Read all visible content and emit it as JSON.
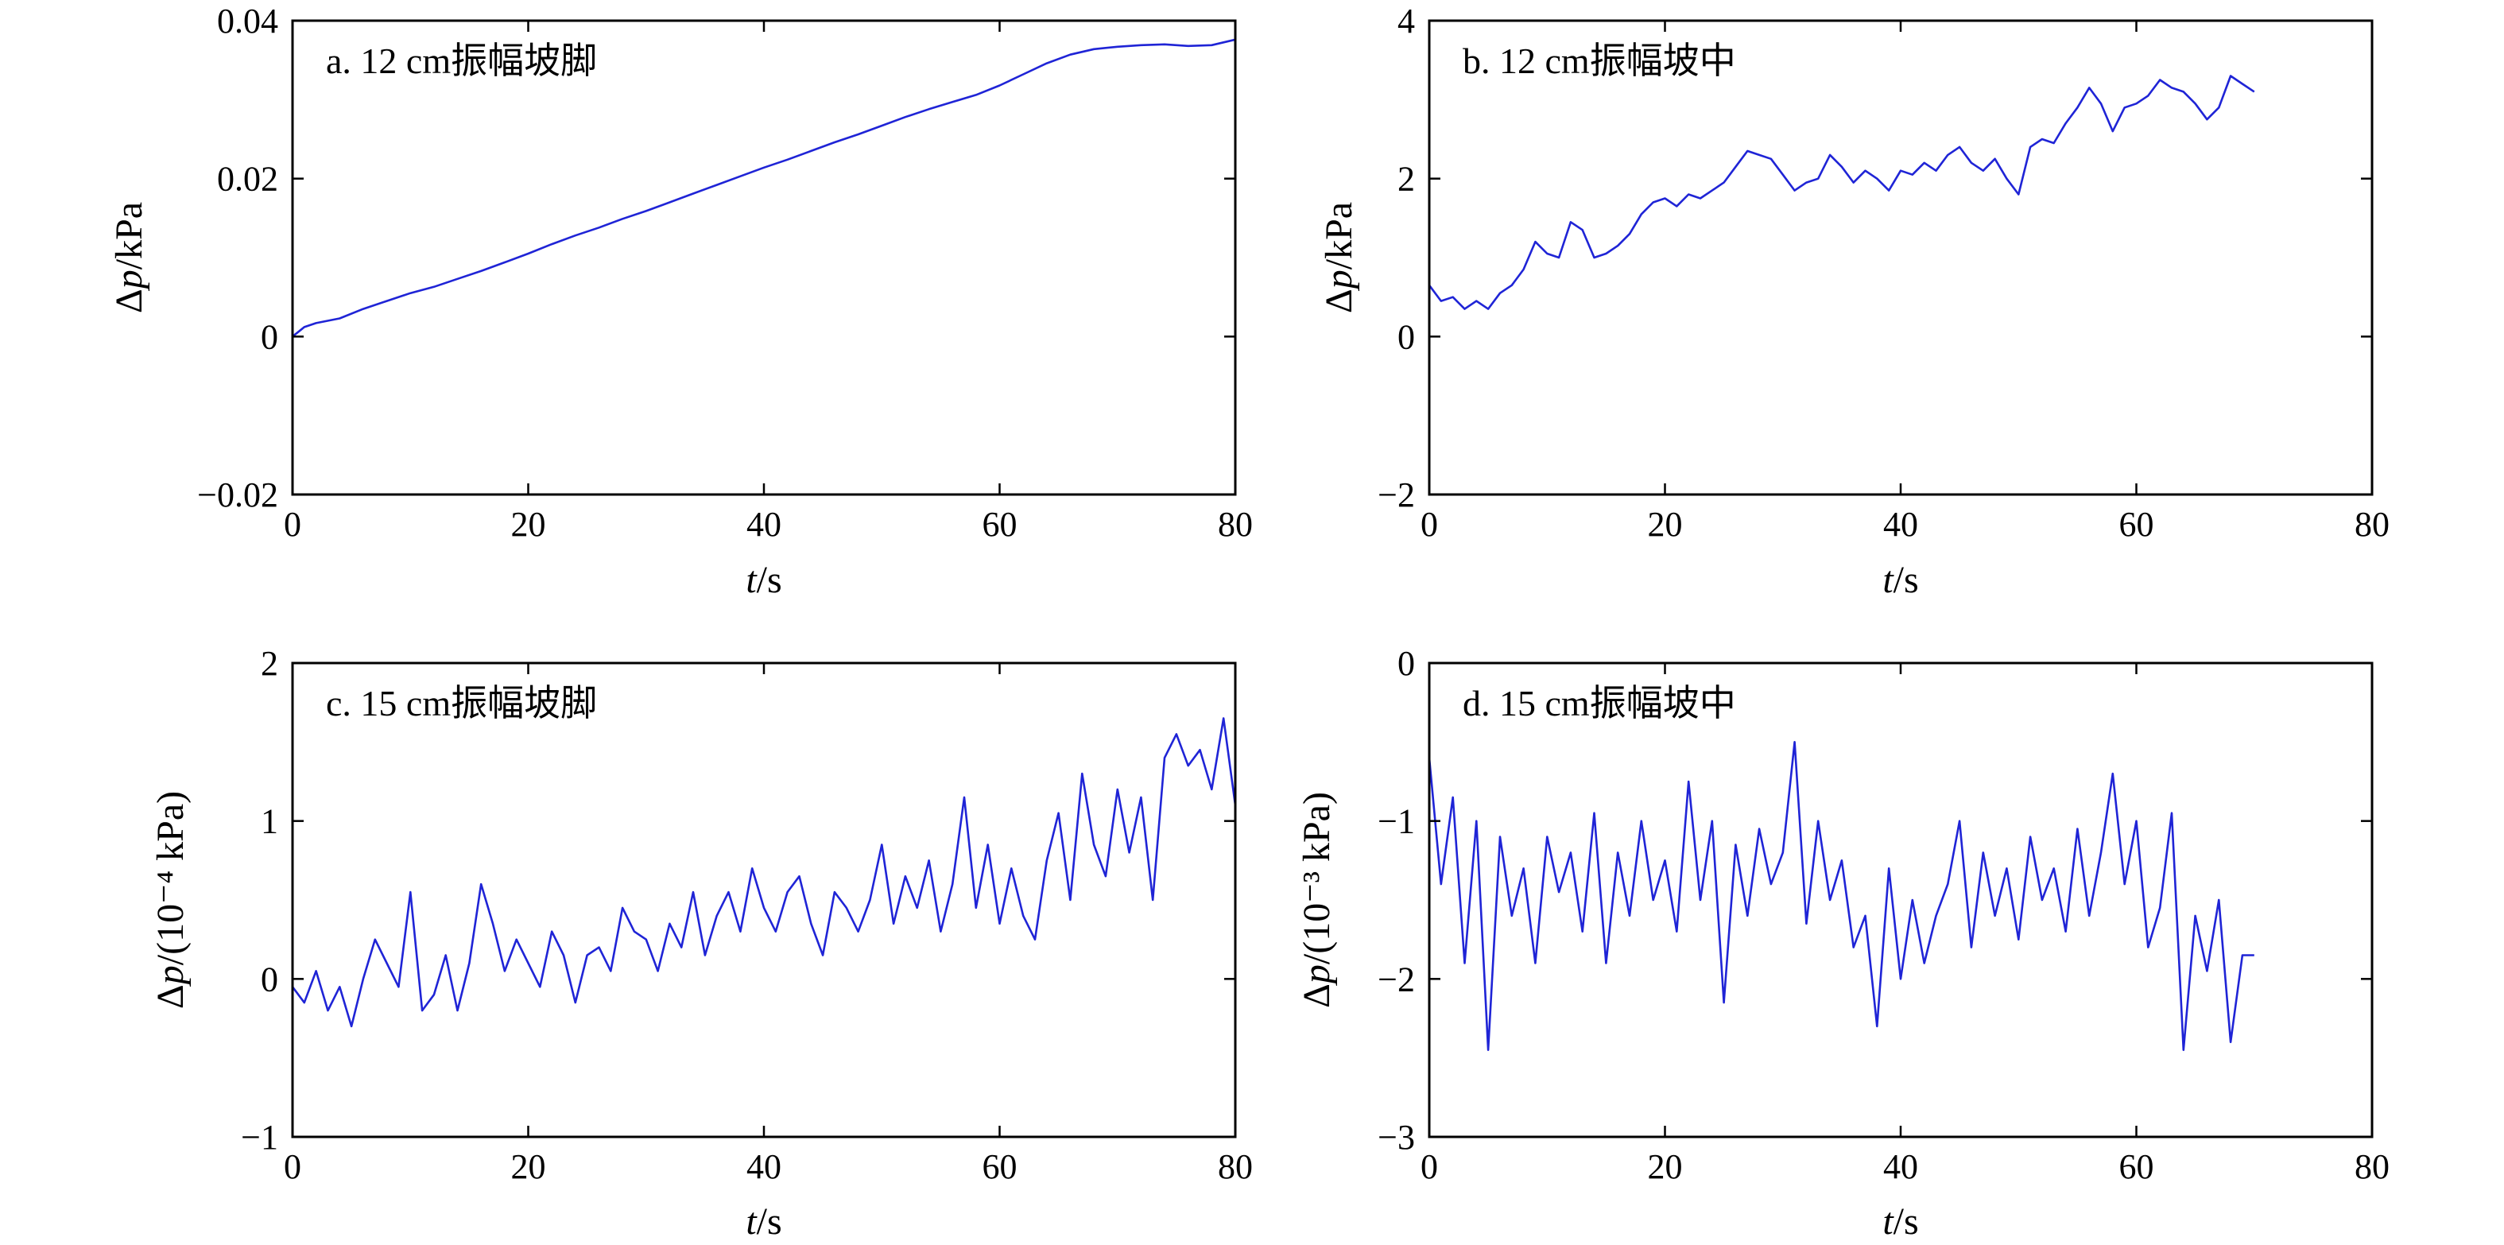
{
  "chart_data": [
    {
      "type": "line",
      "title": "a. 12 cm振幅坡脚",
      "xlabel": "t/s",
      "ylabel": "Δp/kPa",
      "ylabel_parts": {
        "pre": "Δ",
        "var": "p",
        "post": "/kPa"
      },
      "xlim": [
        0,
        80
      ],
      "ylim": [
        -0.02,
        0.04
      ],
      "xticks": [
        0,
        20,
        40,
        60,
        80
      ],
      "yticks": [
        -0.02,
        0,
        0.02,
        0.04
      ],
      "xtick_labels": [
        "0",
        "20",
        "40",
        "60",
        "80"
      ],
      "ytick_labels": [
        "−0.02",
        "0",
        "0.02",
        "0.04"
      ],
      "grid": false,
      "series": [
        {
          "color": "#1f24d6",
          "x": [
            0,
            1,
            2,
            4,
            6,
            8,
            10,
            12,
            14,
            16,
            18,
            20,
            22,
            24,
            26,
            28,
            30,
            32,
            34,
            36,
            38,
            40,
            42,
            44,
            46,
            48,
            50,
            52,
            54,
            56,
            58,
            60,
            62,
            64,
            66,
            68,
            70,
            72,
            74,
            76,
            78,
            80
          ],
          "y": [
            0.0,
            0.0012,
            0.0017,
            0.0023,
            0.0035,
            0.0045,
            0.0055,
            0.0063,
            0.0073,
            0.0083,
            0.0094,
            0.0105,
            0.0117,
            0.0128,
            0.0138,
            0.0149,
            0.0159,
            0.017,
            0.0181,
            0.0192,
            0.0203,
            0.0214,
            0.0224,
            0.0235,
            0.0246,
            0.0256,
            0.0267,
            0.0278,
            0.0288,
            0.0297,
            0.0306,
            0.0318,
            0.0332,
            0.0346,
            0.0357,
            0.0364,
            0.0367,
            0.0369,
            0.037,
            0.0368,
            0.0369,
            0.0376
          ]
        }
      ]
    },
    {
      "type": "line",
      "title": "b. 12 cm振幅坡中",
      "xlabel": "t/s",
      "ylabel": "Δp/kPa",
      "ylabel_parts": {
        "pre": "Δ",
        "var": "p",
        "post": "/kPa"
      },
      "xlim": [
        0,
        80
      ],
      "ylim": [
        -2,
        4
      ],
      "xticks": [
        0,
        20,
        40,
        60,
        80
      ],
      "yticks": [
        -2,
        0,
        2,
        4
      ],
      "xtick_labels": [
        "0",
        "20",
        "40",
        "60",
        "80"
      ],
      "ytick_labels": [
        "−2",
        "0",
        "2",
        "4"
      ],
      "grid": false,
      "series": [
        {
          "color": "#1f24d6",
          "x": [
            0,
            1,
            2,
            3,
            4,
            5,
            6,
            7,
            8,
            9,
            10,
            11,
            12,
            13,
            14,
            15,
            16,
            17,
            18,
            19,
            20,
            21,
            22,
            23,
            24,
            25,
            26,
            27,
            28,
            29,
            30,
            31,
            32,
            33,
            34,
            35,
            36,
            37,
            38,
            39,
            40,
            41,
            42,
            43,
            44,
            45,
            46,
            47,
            48,
            49,
            50,
            51,
            52,
            53,
            54,
            55,
            56,
            57,
            58,
            59,
            60,
            61,
            62,
            63,
            64,
            65,
            66,
            67,
            68,
            69,
            70
          ],
          "y": [
            0.65,
            0.45,
            0.5,
            0.35,
            0.45,
            0.35,
            0.55,
            0.65,
            0.85,
            1.2,
            1.05,
            1.0,
            1.45,
            1.35,
            1.0,
            1.05,
            1.15,
            1.3,
            1.55,
            1.7,
            1.75,
            1.65,
            1.8,
            1.75,
            1.85,
            1.95,
            2.15,
            2.35,
            2.3,
            2.25,
            2.05,
            1.85,
            1.95,
            2.0,
            2.3,
            2.15,
            1.95,
            2.1,
            2.0,
            1.85,
            2.1,
            2.05,
            2.2,
            2.1,
            2.3,
            2.4,
            2.2,
            2.1,
            2.25,
            2.0,
            1.8,
            2.4,
            2.5,
            2.45,
            2.7,
            2.9,
            3.15,
            2.95,
            2.6,
            2.9,
            2.95,
            3.05,
            3.25,
            3.15,
            3.1,
            2.95,
            2.75,
            2.9,
            3.3,
            3.2,
            3.1
          ]
        }
      ]
    },
    {
      "type": "line",
      "title": "c. 15 cm振幅坡脚",
      "xlabel": "t/s",
      "ylabel": "Δp/(10⁻⁴ kPa)",
      "ylabel_parts": {
        "pre": "Δ",
        "var": "p",
        "post": "/(10⁻⁴ kPa)"
      },
      "xlim": [
        0,
        80
      ],
      "ylim": [
        -1,
        2
      ],
      "xticks": [
        0,
        20,
        40,
        60,
        80
      ],
      "yticks": [
        -1,
        0,
        1,
        2
      ],
      "xtick_labels": [
        "0",
        "20",
        "40",
        "60",
        "80"
      ],
      "ytick_labels": [
        "−1",
        "0",
        "1",
        "2"
      ],
      "grid": false,
      "series": [
        {
          "color": "#1f24d6",
          "x": [
            0,
            1,
            2,
            3,
            4,
            5,
            6,
            7,
            8,
            9,
            10,
            11,
            12,
            13,
            14,
            15,
            16,
            17,
            18,
            19,
            20,
            21,
            22,
            23,
            24,
            25,
            26,
            27,
            28,
            29,
            30,
            31,
            32,
            33,
            34,
            35,
            36,
            37,
            38,
            39,
            40,
            41,
            42,
            43,
            44,
            45,
            46,
            47,
            48,
            49,
            50,
            51,
            52,
            53,
            54,
            55,
            56,
            57,
            58,
            59,
            60,
            61,
            62,
            63,
            64,
            65,
            66,
            67,
            68,
            69,
            70,
            71,
            72,
            73,
            74,
            75,
            76,
            77,
            78,
            79,
            80
          ],
          "y": [
            -0.05,
            -0.15,
            0.05,
            -0.2,
            -0.05,
            -0.3,
            0.0,
            0.25,
            0.1,
            -0.05,
            0.55,
            -0.2,
            -0.1,
            0.15,
            -0.2,
            0.1,
            0.6,
            0.35,
            0.05,
            0.25,
            0.1,
            -0.05,
            0.3,
            0.15,
            -0.15,
            0.15,
            0.2,
            0.05,
            0.45,
            0.3,
            0.25,
            0.05,
            0.35,
            0.2,
            0.55,
            0.15,
            0.4,
            0.55,
            0.3,
            0.7,
            0.45,
            0.3,
            0.55,
            0.65,
            0.35,
            0.15,
            0.55,
            0.45,
            0.3,
            0.5,
            0.85,
            0.35,
            0.65,
            0.45,
            0.75,
            0.3,
            0.6,
            1.15,
            0.45,
            0.85,
            0.35,
            0.7,
            0.4,
            0.25,
            0.75,
            1.05,
            0.5,
            1.3,
            0.85,
            0.65,
            1.2,
            0.8,
            1.15,
            0.5,
            1.4,
            1.55,
            1.35,
            1.45,
            1.2,
            1.65,
            1.1
          ]
        }
      ]
    },
    {
      "type": "line",
      "title": "d. 15 cm振幅坡中",
      "xlabel": "t/s",
      "ylabel": "Δp/(10⁻³ kPa)",
      "ylabel_parts": {
        "pre": "Δ",
        "var": "p",
        "post": "/(10⁻³ kPa)"
      },
      "xlim": [
        0,
        80
      ],
      "ylim": [
        -3,
        0
      ],
      "xticks": [
        0,
        20,
        40,
        60,
        80
      ],
      "yticks": [
        -3,
        -2,
        -1,
        0
      ],
      "xtick_labels": [
        "0",
        "20",
        "40",
        "60",
        "80"
      ],
      "ytick_labels": [
        "−3",
        "−2",
        "−1",
        "0"
      ],
      "grid": false,
      "series": [
        {
          "color": "#1f24d6",
          "x": [
            0,
            1,
            2,
            3,
            4,
            5,
            6,
            7,
            8,
            9,
            10,
            11,
            12,
            13,
            14,
            15,
            16,
            17,
            18,
            19,
            20,
            21,
            22,
            23,
            24,
            25,
            26,
            27,
            28,
            29,
            30,
            31,
            32,
            33,
            34,
            35,
            36,
            37,
            38,
            39,
            40,
            41,
            42,
            43,
            44,
            45,
            46,
            47,
            48,
            49,
            50,
            51,
            52,
            53,
            54,
            55,
            56,
            57,
            58,
            59,
            60,
            61,
            62,
            63,
            64,
            65,
            66,
            67,
            68,
            69,
            70
          ],
          "y": [
            -0.6,
            -1.4,
            -0.85,
            -1.9,
            -1.0,
            -2.45,
            -1.1,
            -1.6,
            -1.3,
            -1.9,
            -1.1,
            -1.45,
            -1.2,
            -1.7,
            -0.95,
            -1.9,
            -1.2,
            -1.6,
            -1.0,
            -1.5,
            -1.25,
            -1.7,
            -0.75,
            -1.5,
            -1.0,
            -2.15,
            -1.15,
            -1.6,
            -1.05,
            -1.4,
            -1.2,
            -0.5,
            -1.65,
            -1.0,
            -1.5,
            -1.25,
            -1.8,
            -1.6,
            -2.3,
            -1.3,
            -2.0,
            -1.5,
            -1.9,
            -1.6,
            -1.4,
            -1.0,
            -1.8,
            -1.2,
            -1.6,
            -1.3,
            -1.75,
            -1.1,
            -1.5,
            -1.3,
            -1.7,
            -1.05,
            -1.6,
            -1.2,
            -0.7,
            -1.4,
            -1.0,
            -1.8,
            -1.55,
            -0.95,
            -2.45,
            -1.6,
            -1.95,
            -1.5,
            -2.4,
            -1.85,
            -1.85
          ]
        }
      ]
    }
  ]
}
